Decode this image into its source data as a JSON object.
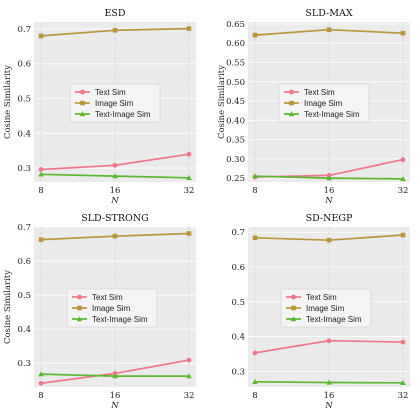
{
  "chart_data": [
    {
      "type": "line",
      "title": "ESD",
      "xlabel": "N",
      "ylabel": "Cosine Similarity",
      "x": [
        8,
        16,
        32
      ],
      "x_scale": "log2",
      "ylim": [
        0.26,
        0.72
      ],
      "yticks": [
        0.3,
        0.4,
        0.5,
        0.6,
        0.7
      ],
      "ytick_labels": [
        "0.3",
        "0.4",
        "0.5",
        "0.6",
        "0.7"
      ],
      "legend_position": "center-left",
      "series": [
        {
          "name": "Text Sim",
          "values": [
            0.296,
            0.308,
            0.34
          ]
        },
        {
          "name": "Image Sim",
          "values": [
            0.68,
            0.696,
            0.701
          ]
        },
        {
          "name": "Text-Image Sim",
          "values": [
            0.282,
            0.277,
            0.272
          ]
        }
      ]
    },
    {
      "type": "line",
      "title": "SLD-MAX",
      "xlabel": "N",
      "ylabel": "Cosine Similarity",
      "x": [
        8,
        16,
        32
      ],
      "x_scale": "log2",
      "ylim": [
        0.24,
        0.655
      ],
      "yticks": [
        0.25,
        0.3,
        0.35,
        0.4,
        0.45,
        0.5,
        0.55,
        0.6,
        0.65
      ],
      "ytick_labels": [
        "0.25",
        "0.30",
        "0.35",
        "0.40",
        "0.45",
        "0.50",
        "0.55",
        "0.60",
        "0.65"
      ],
      "legend_position": "center",
      "series": [
        {
          "name": "Text Sim",
          "values": [
            0.253,
            0.257,
            0.298
          ]
        },
        {
          "name": "Image Sim",
          "values": [
            0.621,
            0.635,
            0.626
          ]
        },
        {
          "name": "Text-Image Sim",
          "values": [
            0.255,
            0.25,
            0.248
          ]
        }
      ]
    },
    {
      "type": "line",
      "title": "SLD-STRONG",
      "xlabel": "N",
      "ylabel": "Cosine Similarity",
      "x": [
        8,
        16,
        32
      ],
      "x_scale": "log2",
      "ylim": [
        0.23,
        0.7
      ],
      "yticks": [
        0.3,
        0.4,
        0.5,
        0.6,
        0.7
      ],
      "ytick_labels": [
        "0.3",
        "0.4",
        "0.5",
        "0.6",
        "0.7"
      ],
      "legend_position": "center",
      "series": [
        {
          "name": "Text Sim",
          "values": [
            0.241,
            0.27,
            0.309
          ]
        },
        {
          "name": "Image Sim",
          "values": [
            0.663,
            0.673,
            0.681
          ]
        },
        {
          "name": "Text-Image Sim",
          "values": [
            0.268,
            0.262,
            0.262
          ]
        }
      ]
    },
    {
      "type": "line",
      "title": "SD-NEGP",
      "xlabel": "N",
      "ylabel": "",
      "x": [
        8,
        16,
        32
      ],
      "x_scale": "log2",
      "ylim": [
        0.255,
        0.715
      ],
      "yticks": [
        0.3,
        0.4,
        0.5,
        0.6,
        0.7
      ],
      "ytick_labels": [
        "0.3",
        "0.4",
        "0.5",
        "0.6",
        "0.7"
      ],
      "legend_position": "center",
      "series": [
        {
          "name": "Text Sim",
          "values": [
            0.353,
            0.388,
            0.384
          ]
        },
        {
          "name": "Image Sim",
          "values": [
            0.684,
            0.677,
            0.692
          ]
        },
        {
          "name": "Text-Image Sim",
          "values": [
            0.27,
            0.268,
            0.267
          ]
        }
      ]
    }
  ],
  "series_colors": {
    "Text Sim": "#f0768b",
    "Image Sim": "#b8963a",
    "Text-Image Sim": "#5cb82e"
  },
  "series_markers": {
    "Text Sim": "circle",
    "Image Sim": "square",
    "Text-Image Sim": "triangle"
  }
}
